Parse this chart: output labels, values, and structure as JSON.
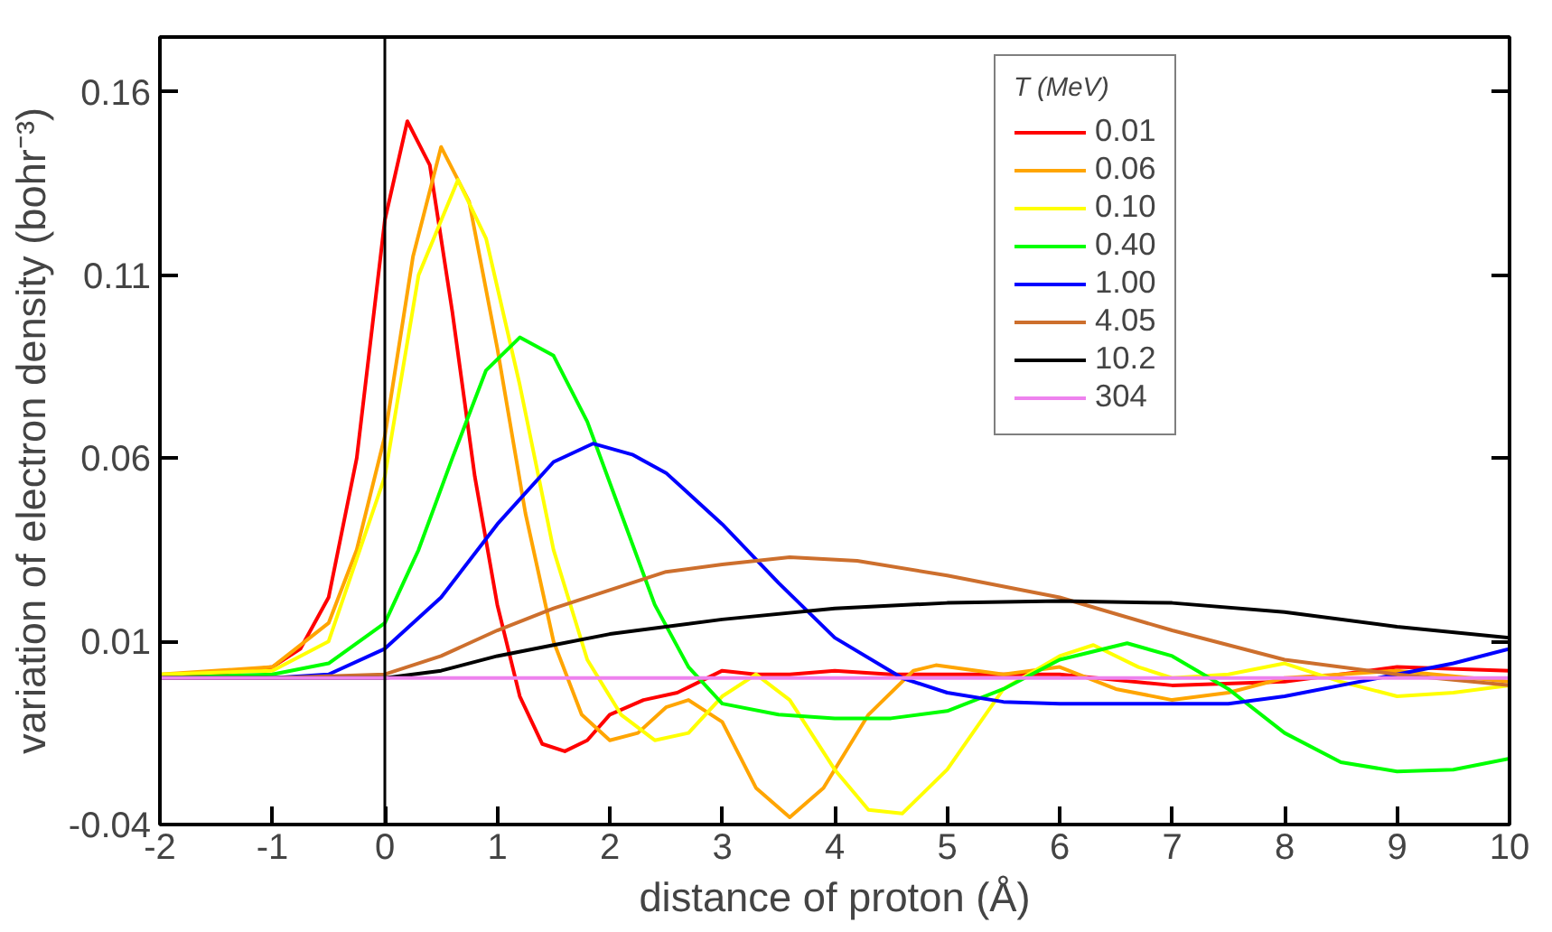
{
  "chart_data": {
    "type": "line",
    "xlabel": "distance of proton (Å)",
    "ylabel": "variation of electron density (bohr⁻³)",
    "legend_title": "T (MeV)",
    "xlim": [
      -2,
      10
    ],
    "ylim": [
      -0.04,
      0.175
    ],
    "xticks": [
      -2,
      -1,
      0,
      1,
      2,
      3,
      4,
      5,
      6,
      7,
      8,
      9,
      10
    ],
    "yticks": [
      {
        "value": -0.04,
        "label": "-0.04"
      },
      {
        "value": 0.01,
        "label": "0.01"
      },
      {
        "value": 0.06,
        "label": "0.06"
      },
      {
        "value": 0.11,
        "label": "0.11"
      },
      {
        "value": 0.16,
        "label": "0.16"
      }
    ],
    "grid": false,
    "legend": "top right",
    "marker": "none",
    "line_style": "solid",
    "ref_lines": [
      {
        "axis": "x",
        "value": 0,
        "color": "#000000"
      }
    ],
    "series": [
      {
        "name": "0.01",
        "color": "#ff0000",
        "x": [
          -2,
          -1.5,
          -1,
          -0.75,
          -0.5,
          -0.25,
          0,
          0.2,
          0.4,
          0.6,
          0.8,
          1.0,
          1.2,
          1.4,
          1.6,
          1.8,
          2.0,
          2.3,
          2.6,
          3.0,
          3.3,
          3.6,
          4,
          4.5,
          5,
          6,
          7,
          8,
          9,
          10
        ],
        "values": [
          0.0005,
          0.001,
          0.003,
          0.008,
          0.022,
          0.06,
          0.125,
          0.152,
          0.14,
          0.1,
          0.055,
          0.02,
          -0.005,
          -0.018,
          -0.02,
          -0.017,
          -0.01,
          -0.006,
          -0.004,
          0.002,
          0.001,
          0.001,
          0.002,
          0.001,
          0.001,
          0.001,
          -0.002,
          -0.001,
          0.003,
          0.002
        ]
      },
      {
        "name": "0.06",
        "color": "#ffa500",
        "x": [
          -2,
          -1,
          -0.5,
          -0.25,
          0,
          0.25,
          0.5,
          0.75,
          1.0,
          1.25,
          1.5,
          1.75,
          2.0,
          2.25,
          2.5,
          2.7,
          3.0,
          3.3,
          3.6,
          3.9,
          4.3,
          4.7,
          4.9,
          5.5,
          6.0,
          6.5,
          7,
          7.5,
          8,
          9,
          10
        ],
        "values": [
          0.001,
          0.003,
          0.015,
          0.035,
          0.066,
          0.115,
          0.145,
          0.13,
          0.09,
          0.045,
          0.01,
          -0.01,
          -0.017,
          -0.015,
          -0.008,
          -0.006,
          -0.012,
          -0.03,
          -0.038,
          -0.03,
          -0.01,
          0.002,
          0.0035,
          0.001,
          0.003,
          -0.003,
          -0.006,
          -0.004,
          0,
          0.002,
          -0.001
        ]
      },
      {
        "name": "0.10",
        "color": "#ffff00",
        "x": [
          -2,
          -1,
          -0.5,
          0,
          0.3,
          0.65,
          0.9,
          1.2,
          1.5,
          1.8,
          2.1,
          2.4,
          2.7,
          3.0,
          3.3,
          3.6,
          4.0,
          4.3,
          4.6,
          5.0,
          5.5,
          6.0,
          6.3,
          6.7,
          7,
          7.5,
          8,
          8.5,
          9,
          9.5,
          10
        ],
        "values": [
          0.001,
          0.002,
          0.01,
          0.055,
          0.11,
          0.136,
          0.12,
          0.08,
          0.035,
          0.005,
          -0.01,
          -0.017,
          -0.015,
          -0.005,
          0.001,
          -0.006,
          -0.025,
          -0.036,
          -0.037,
          -0.025,
          -0.003,
          0.006,
          0.009,
          0.003,
          0,
          0.001,
          0.004,
          -0.001,
          -0.005,
          -0.004,
          -0.002
        ]
      },
      {
        "name": "0.40",
        "color": "#00ff00",
        "x": [
          -2,
          -1,
          -0.5,
          0,
          0.3,
          0.6,
          0.9,
          1.2,
          1.5,
          1.8,
          2.1,
          2.4,
          2.7,
          3.0,
          3.5,
          4,
          4.5,
          5,
          5.5,
          6,
          6.6,
          7,
          7.5,
          8,
          8.5,
          9,
          9.5,
          10
        ],
        "values": [
          0,
          0.001,
          0.004,
          0.015,
          0.035,
          0.06,
          0.084,
          0.093,
          0.088,
          0.07,
          0.045,
          0.02,
          0.003,
          -0.007,
          -0.01,
          -0.011,
          -0.011,
          -0.009,
          -0.003,
          0.005,
          0.0095,
          0.006,
          -0.003,
          -0.015,
          -0.023,
          -0.0255,
          -0.025,
          -0.022
        ]
      },
      {
        "name": "1.00",
        "color": "#0000ff",
        "x": [
          -2,
          -1,
          -0.5,
          0,
          0.5,
          1.0,
          1.5,
          1.85,
          2.2,
          2.5,
          3,
          3.5,
          4,
          4.6,
          5,
          5.5,
          6,
          7,
          7.5,
          8,
          8.5,
          9,
          9.5,
          10
        ],
        "values": [
          0,
          0,
          0.001,
          0.008,
          0.022,
          0.042,
          0.059,
          0.064,
          0.061,
          0.056,
          0.042,
          0.026,
          0.011,
          0,
          -0.004,
          -0.0065,
          -0.007,
          -0.007,
          -0.007,
          -0.005,
          -0.002,
          0.001,
          0.004,
          0.008
        ]
      },
      {
        "name": "4.05",
        "color": "#cd6f2d",
        "x": [
          -2,
          -1,
          0,
          0.5,
          1,
          1.5,
          2,
          2.5,
          3,
          3.6,
          4.2,
          5,
          6,
          7,
          8,
          9,
          10
        ],
        "values": [
          0,
          0,
          0.001,
          0.006,
          0.013,
          0.019,
          0.024,
          0.029,
          0.031,
          0.033,
          0.032,
          0.028,
          0.022,
          0.013,
          0.005,
          0.001,
          -0.002
        ]
      },
      {
        "name": "10.2",
        "color": "#000000",
        "x": [
          -2,
          -1,
          0,
          0.5,
          1,
          1.5,
          2,
          3,
          4,
          5,
          6,
          7,
          8,
          9,
          10
        ],
        "values": [
          0,
          0,
          0,
          0.002,
          0.006,
          0.009,
          0.012,
          0.016,
          0.019,
          0.0205,
          0.021,
          0.0205,
          0.018,
          0.014,
          0.011
        ]
      },
      {
        "name": "304",
        "color": "#ee82ee",
        "x": [
          -2,
          0,
          2,
          4,
          6,
          8,
          10
        ],
        "values": [
          0,
          0,
          0,
          0,
          0,
          0,
          0
        ]
      }
    ]
  }
}
